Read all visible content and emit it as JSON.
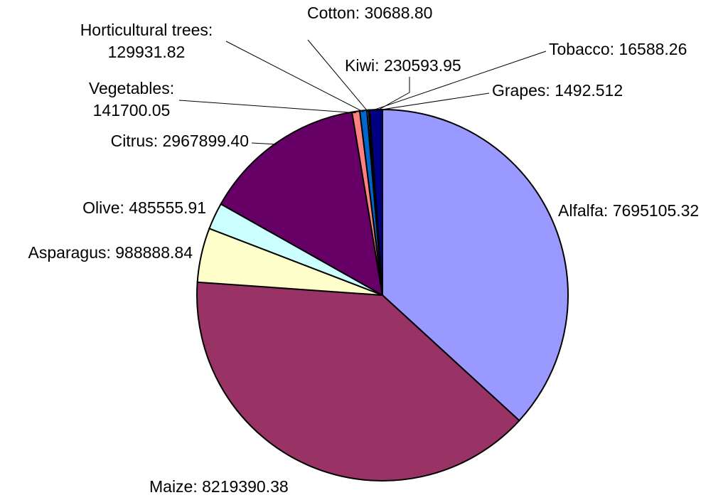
{
  "chart_data": {
    "type": "pie",
    "categories": [
      "Alfalfa",
      "Maize",
      "Asparagus",
      "Olive",
      "Citrus",
      "Vegetables",
      "Horticultural trees",
      "Cotton",
      "Tobacco",
      "Grapes",
      "Kiwi"
    ],
    "values": [
      7695105.32,
      8219390.38,
      988888.84,
      485555.91,
      2967899.4,
      141700.05,
      129931.82,
      30688.8,
      16588.26,
      1492.512,
      230593.95
    ],
    "value_labels": [
      "Alfalfa: 7695105.32",
      "Maize: 8219390.38",
      "Asparagus: 988888.84",
      "Olive: 485555.91",
      "Citrus: 2967899.40",
      "Vegetables: 141700.05",
      "Horticultural trees: 129931.82",
      "Cotton: 30688.80",
      "Tobacco: 16588.26",
      "Grapes: 1492.512",
      "Kiwi: 230593.95"
    ],
    "colors": [
      "#9999ff",
      "#993366",
      "#ffffcc",
      "#ccffff",
      "#660066",
      "#ff8080",
      "#0066cc",
      "#ccccff",
      "#000080",
      "#00ffff",
      "#000080"
    ]
  }
}
